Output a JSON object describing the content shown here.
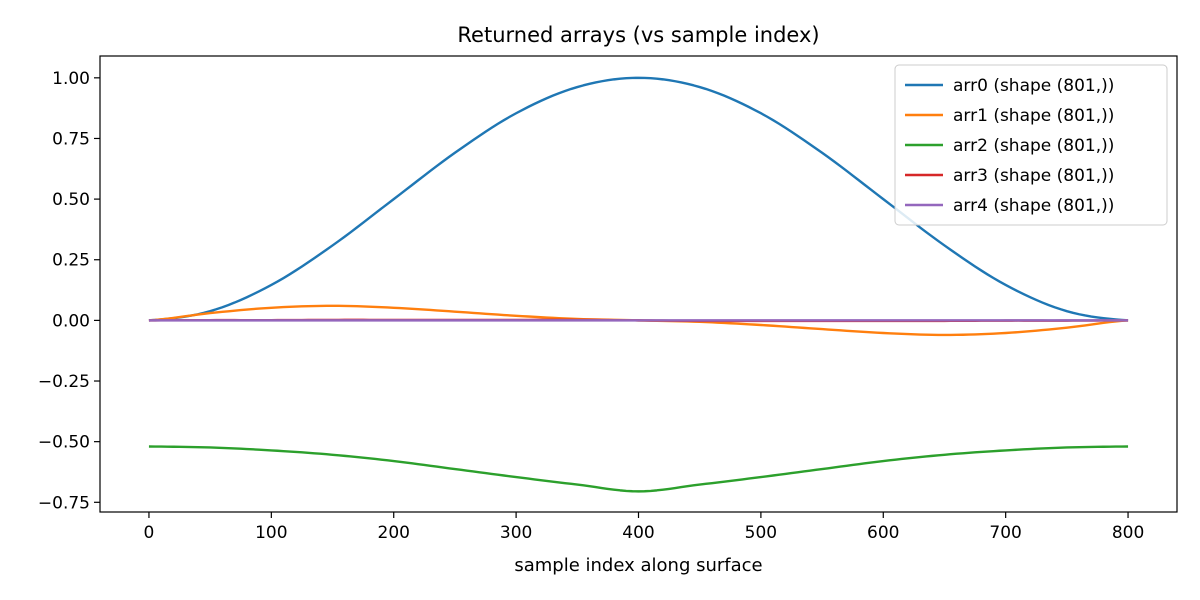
{
  "chart_data": {
    "type": "line",
    "title": "Returned arrays (vs sample index)",
    "xlabel": "sample index along surface",
    "ylabel": "",
    "xlim": [
      -40,
      840
    ],
    "ylim": [
      -0.79,
      1.09
    ],
    "xticks": [
      0,
      100,
      200,
      300,
      400,
      500,
      600,
      700,
      800
    ],
    "xtick_labels": [
      "0",
      "100",
      "200",
      "300",
      "400",
      "500",
      "600",
      "700",
      "800"
    ],
    "yticks": [
      -0.75,
      -0.5,
      -0.25,
      0.0,
      0.25,
      0.5,
      0.75,
      1.0
    ],
    "ytick_labels": [
      "−0.75",
      "−0.50",
      "−0.25",
      "0.00",
      "0.25",
      "0.50",
      "0.75",
      "1.00"
    ],
    "grid": false,
    "legend_position": "top-right",
    "x": [
      0,
      50,
      100,
      150,
      200,
      250,
      300,
      350,
      400,
      450,
      500,
      550,
      600,
      650,
      700,
      750,
      800
    ],
    "series": [
      {
        "name": "arr0 (shape (801,))",
        "color": "#1f77b4",
        "values": [
          0.0,
          0.038,
          0.146,
          0.309,
          0.5,
          0.691,
          0.854,
          0.962,
          1.0,
          0.962,
          0.854,
          0.691,
          0.5,
          0.309,
          0.146,
          0.038,
          0.0
        ]
      },
      {
        "name": "arr1 (shape (801,))",
        "color": "#ff7f0e",
        "values": [
          0.0,
          0.03,
          0.052,
          0.06,
          0.052,
          0.036,
          0.019,
          0.006,
          0.0,
          -0.006,
          -0.019,
          -0.036,
          -0.052,
          -0.06,
          -0.052,
          -0.03,
          0.0
        ]
      },
      {
        "name": "arr2 (shape (801,))",
        "color": "#2ca02c",
        "values": [
          -0.52,
          -0.524,
          -0.536,
          -0.554,
          -0.58,
          -0.613,
          -0.646,
          -0.677,
          -0.705,
          -0.677,
          -0.646,
          -0.613,
          -0.58,
          -0.554,
          -0.536,
          -0.524,
          -0.52
        ]
      },
      {
        "name": "arr3 (shape (801,))",
        "color": "#d62728",
        "values": [
          0.0,
          0.001,
          0.001,
          0.002,
          0.002,
          0.002,
          0.002,
          0.002,
          0.0,
          -0.002,
          -0.002,
          -0.002,
          -0.002,
          -0.002,
          -0.001,
          -0.001,
          0.0
        ]
      },
      {
        "name": "arr4 (shape (801,))",
        "color": "#9467bd",
        "values": [
          0.0,
          0.0,
          0.0,
          0.0,
          0.0,
          0.0,
          0.0,
          0.0,
          0.0,
          0.0,
          0.0,
          0.0,
          0.0,
          0.0,
          0.0,
          0.0,
          0.0
        ]
      }
    ]
  }
}
